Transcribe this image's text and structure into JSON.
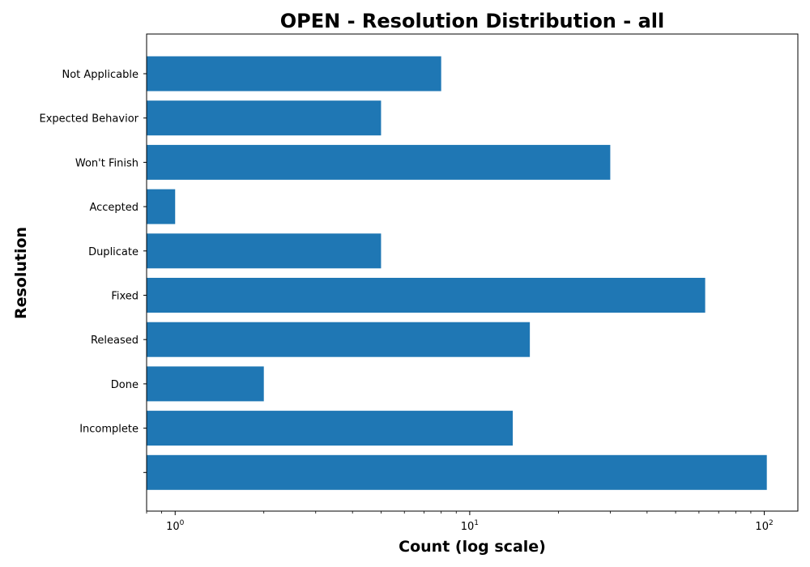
{
  "chart_data": {
    "type": "bar",
    "orientation": "horizontal",
    "title": "OPEN - Resolution Distribution - all",
    "xlabel": "Count (log scale)",
    "ylabel": "Resolution",
    "x_scale": "log",
    "xlim": [
      0.8,
      130
    ],
    "x_ticks": [
      {
        "value": 1,
        "base": "10",
        "exp": "0"
      },
      {
        "value": 10,
        "base": "10",
        "exp": "1"
      },
      {
        "value": 100,
        "base": "10",
        "exp": "2"
      }
    ],
    "categories": [
      "Not Applicable",
      "Expected Behavior",
      "Won't Finish",
      "Accepted",
      "Duplicate",
      "Fixed",
      "Released",
      "Done",
      "Incomplete",
      ""
    ],
    "values": [
      8,
      5,
      30,
      1,
      5,
      63,
      16,
      2,
      14,
      102
    ],
    "bar_color": "#1f77b4",
    "grid": false,
    "legend": "none"
  }
}
